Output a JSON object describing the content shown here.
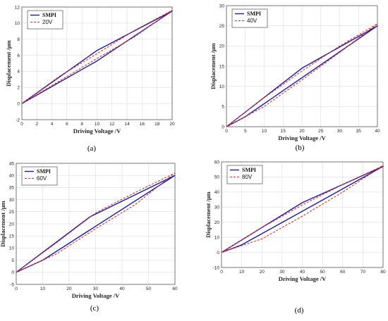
{
  "chart_data": [
    {
      "type": "line",
      "panel_label": "(a)",
      "xlabel": "Driving Voltage  /V",
      "ylabel": "Displacement  /μm",
      "xlim": [
        0,
        20
      ],
      "ylim": [
        -2,
        12
      ],
      "xticks": [
        0,
        2,
        4,
        6,
        8,
        10,
        12,
        14,
        16,
        18,
        20
      ],
      "yticks": [
        -2,
        0,
        2,
        4,
        6,
        8,
        10,
        12
      ],
      "grid": true,
      "legend_position": "top-left",
      "series": [
        {
          "name": "SMPI",
          "color": "#1a1aa8",
          "style": "solid",
          "x": [
            0,
            10,
            20,
            10,
            0
          ],
          "y": [
            0,
            6.6,
            11.5,
            5.3,
            0
          ]
        },
        {
          "name": "20V",
          "color": "#e0301e",
          "style": "dashed",
          "x": [
            0,
            5,
            10,
            15,
            20,
            15,
            10,
            5,
            0
          ],
          "y": [
            0,
            3.4,
            6.2,
            9.1,
            11.6,
            8.3,
            5.6,
            2.8,
            0
          ]
        }
      ]
    },
    {
      "type": "line",
      "panel_label": "(b)",
      "xlabel": "Driving Voltage  /V",
      "ylabel": "Displacement  /μm",
      "xlim": [
        0,
        40
      ],
      "ylim": [
        0,
        30
      ],
      "xticks": [
        0,
        5,
        10,
        15,
        20,
        25,
        30,
        35,
        40
      ],
      "yticks": [
        0,
        5,
        10,
        15,
        20,
        25,
        30
      ],
      "grid": true,
      "legend_position": "top-left",
      "series": [
        {
          "name": "SMPI",
          "color": "#1a1aa8",
          "style": "solid",
          "x": [
            0,
            20,
            40,
            5,
            0
          ],
          "y": [
            0,
            14.5,
            25,
            2.5,
            0
          ]
        },
        {
          "name": "40V",
          "color": "#e0301e",
          "style": "dashed",
          "x": [
            0,
            10,
            20,
            30,
            40,
            30,
            20,
            10,
            0
          ],
          "y": [
            0,
            7.2,
            13.8,
            20,
            25.5,
            18.4,
            11.6,
            5,
            0
          ]
        }
      ]
    },
    {
      "type": "line",
      "panel_label": "(c)",
      "xlabel": "Driving Voltage  /V",
      "ylabel": "Displacement  /μm",
      "xlim": [
        0,
        60
      ],
      "ylim": [
        -5,
        45
      ],
      "xticks": [
        0,
        10,
        20,
        30,
        40,
        50,
        60
      ],
      "yticks": [
        -5,
        0,
        5,
        10,
        15,
        20,
        25,
        30,
        35,
        40,
        45
      ],
      "grid": true,
      "legend_position": "top-left",
      "series": [
        {
          "name": "SMPI",
          "color": "#1a1aa8",
          "style": "solid",
          "x": [
            0,
            28,
            60,
            10,
            0
          ],
          "y": [
            0,
            23,
            40,
            5,
            0
          ]
        },
        {
          "name": "60V",
          "color": "#e0301e",
          "style": "dashed",
          "x": [
            0,
            15,
            30,
            45,
            60,
            45,
            30,
            15,
            0
          ],
          "y": [
            0,
            12,
            24.5,
            33,
            41,
            28,
            18,
            7.5,
            0
          ]
        }
      ]
    },
    {
      "type": "line",
      "panel_label": "(d)",
      "xlabel": "Driving Voltage  /V",
      "ylabel": "Displacement  /μm",
      "xlim": [
        0,
        80
      ],
      "ylim": [
        -10,
        60
      ],
      "xticks": [
        0,
        10,
        20,
        30,
        40,
        50,
        60,
        70,
        80
      ],
      "yticks": [
        -10,
        0,
        10,
        20,
        30,
        40,
        50,
        60
      ],
      "grid": true,
      "legend_position": "top-left",
      "series": [
        {
          "name": "SMPI",
          "color": "#1a1aa8",
          "style": "solid",
          "x": [
            0,
            40,
            80,
            10,
            0
          ],
          "y": [
            0,
            33,
            57,
            5,
            0
          ]
        },
        {
          "name": "80V",
          "color": "#e0301e",
          "style": "dashed",
          "x": [
            0,
            20,
            40,
            60,
            80,
            60,
            40,
            20,
            0
          ],
          "y": [
            0,
            16.5,
            31.5,
            45,
            57.5,
            40,
            24,
            9,
            0
          ]
        }
      ]
    }
  ]
}
